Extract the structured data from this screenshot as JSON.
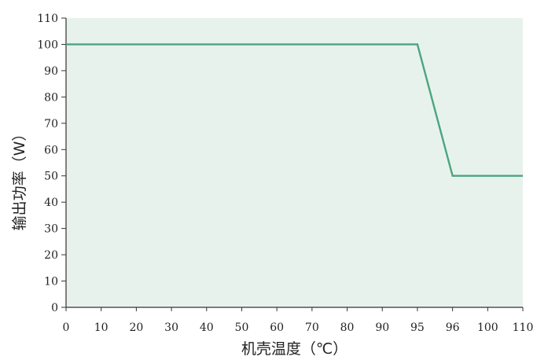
{
  "chart_data": {
    "type": "line",
    "title": "",
    "xlabel": "机壳温度（℃）",
    "ylabel": "输出功率（W）",
    "categories": [
      "0",
      "10",
      "20",
      "30",
      "40",
      "50",
      "60",
      "70",
      "80",
      "90",
      "95",
      "96",
      "100",
      "110"
    ],
    "y_ticks": [
      "0",
      "10",
      "20",
      "30",
      "40",
      "50",
      "60",
      "70",
      "80",
      "90",
      "100",
      "110"
    ],
    "ylim": [
      0,
      110
    ],
    "grid": false,
    "series": [
      {
        "x": [
          "0",
          "95",
          "96",
          "110"
        ],
        "values": [
          100,
          100,
          50,
          50
        ]
      }
    ],
    "colors": {
      "line": "#4aa57f",
      "plot_background": "#e8f2ec",
      "axis": "#333333"
    }
  }
}
